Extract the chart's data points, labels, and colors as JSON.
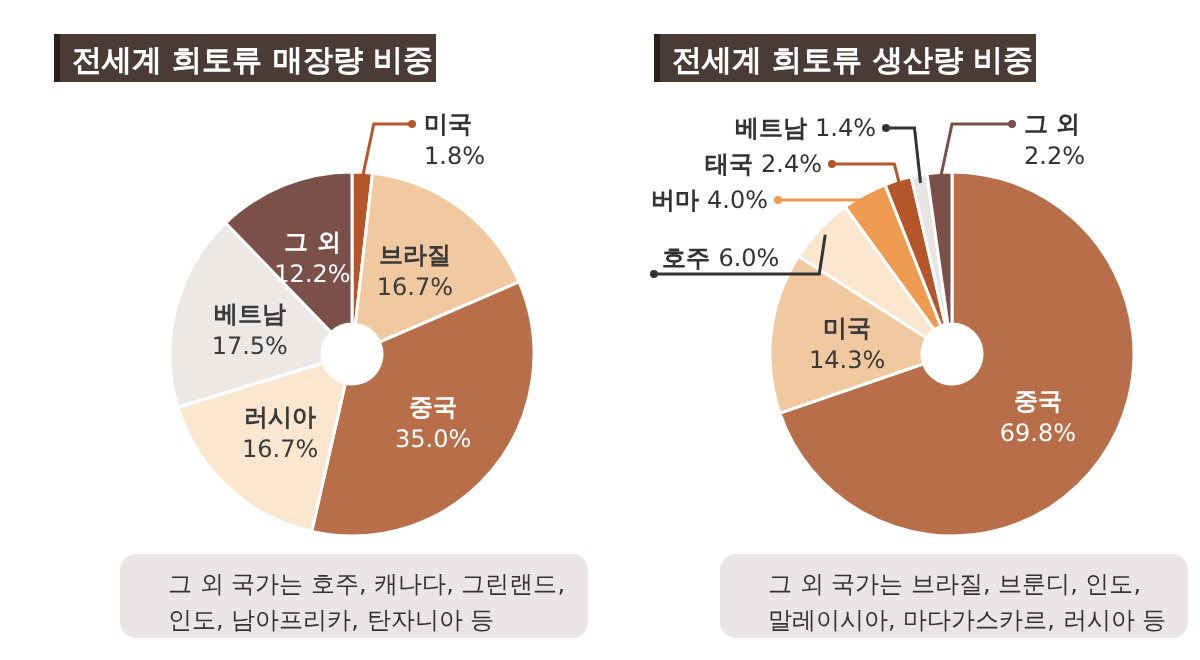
{
  "chart_data": [
    {
      "type": "donut",
      "title": "전세계 희토류 매장량 비중",
      "categories": [
        "미국",
        "브라질",
        "중국",
        "러시아",
        "베트남",
        "그 외"
      ],
      "values": [
        1.8,
        16.7,
        35.0,
        16.7,
        17.5,
        12.2
      ],
      "value_labels": [
        "1.8%",
        "16.7%",
        "35.0%",
        "16.7%",
        "17.5%",
        "12.2%"
      ],
      "colors": [
        "#b5562a",
        "#f0c9a0",
        "#b86e48",
        "#fbe6cf",
        "#ece8e6",
        "#7a5048"
      ],
      "annotations": [
        "그 외 국가는 호주, 캐나다, 그린랜드, 인도, 남아프리카, 탄자니아 등"
      ]
    },
    {
      "type": "donut",
      "title": "전세계 희토류 생산량 비중",
      "categories": [
        "중국",
        "미국",
        "호주",
        "버마",
        "태국",
        "베트남",
        "그 외"
      ],
      "values": [
        69.8,
        14.3,
        6.0,
        4.0,
        2.4,
        1.4,
        2.2
      ],
      "value_labels": [
        "69.8%",
        "14.3%",
        "6.0%",
        "4.0%",
        "2.4%",
        "1.4%",
        "2.2%"
      ],
      "colors": [
        "#b86e48",
        "#f0c9a0",
        "#fbe6cf",
        "#ee9a50",
        "#b5562a",
        "#e8e4e2",
        "#7a5048"
      ],
      "annotations": [
        "그 외 국가는 브라질, 브룬디, 인도, 말레이시아, 마다가스카르, 러시아 등"
      ]
    }
  ]
}
